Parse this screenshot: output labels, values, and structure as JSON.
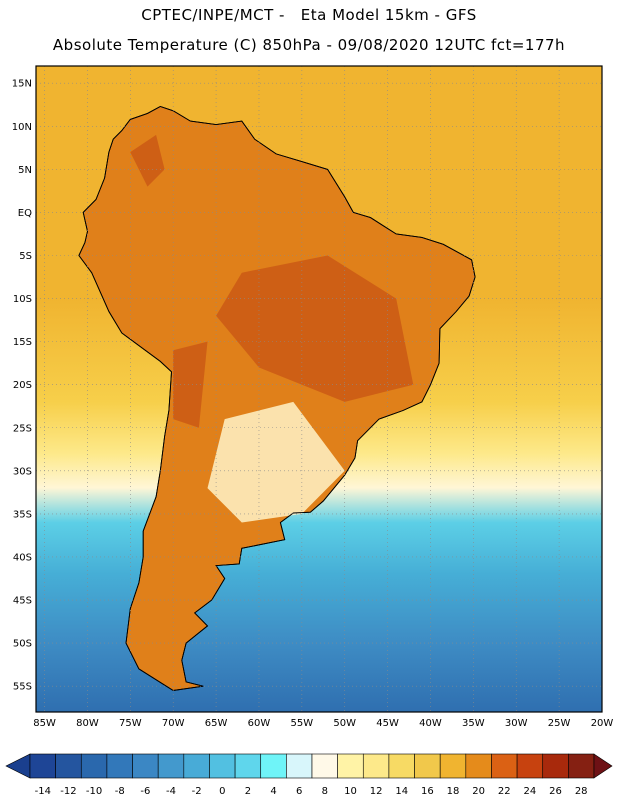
{
  "header": {
    "line1": "CPTEC/INPE/MCT -   Eta Model 15km - GFS",
    "line2": "Absolute Temperature (C) 850hPa - 09/08/2020 12UTC fct=177h"
  },
  "map": {
    "lon_range": [
      -86,
      -20
    ],
    "lat_range": [
      -58,
      17
    ],
    "lat_ticks": [
      {
        "lat": 15,
        "label": "15N"
      },
      {
        "lat": 10,
        "label": "10N"
      },
      {
        "lat": 5,
        "label": "5N"
      },
      {
        "lat": 0,
        "label": "EQ"
      },
      {
        "lat": -5,
        "label": "5S"
      },
      {
        "lat": -10,
        "label": "10S"
      },
      {
        "lat": -15,
        "label": "15S"
      },
      {
        "lat": -20,
        "label": "20S"
      },
      {
        "lat": -25,
        "label": "25S"
      },
      {
        "lat": -30,
        "label": "30S"
      },
      {
        "lat": -35,
        "label": "35S"
      },
      {
        "lat": -40,
        "label": "40S"
      },
      {
        "lat": -45,
        "label": "45S"
      },
      {
        "lat": -50,
        "label": "50S"
      },
      {
        "lat": -55,
        "label": "55S"
      }
    ],
    "lon_ticks": [
      {
        "lon": -85,
        "label": "85W"
      },
      {
        "lon": -80,
        "label": "80W"
      },
      {
        "lon": -75,
        "label": "75W"
      },
      {
        "lon": -70,
        "label": "70W"
      },
      {
        "lon": -65,
        "label": "65W"
      },
      {
        "lon": -60,
        "label": "60W"
      },
      {
        "lon": -55,
        "label": "55W"
      },
      {
        "lon": -50,
        "label": "50W"
      },
      {
        "lon": -45,
        "label": "45W"
      },
      {
        "lon": -40,
        "label": "40W"
      },
      {
        "lon": -35,
        "label": "35W"
      },
      {
        "lon": -30,
        "label": "30W"
      },
      {
        "lon": -25,
        "label": "25W"
      },
      {
        "lon": -20,
        "label": "20W"
      }
    ],
    "bands": [
      {
        "lat": -58,
        "color": "#2f6fb0"
      },
      {
        "lat": -50,
        "color": "#3e8cc4"
      },
      {
        "lat": -42,
        "color": "#46aed6"
      },
      {
        "lat": -36,
        "color": "#5ccfe6"
      },
      {
        "lat": -32,
        "color": "#fff6d6"
      },
      {
        "lat": -28,
        "color": "#fde98a"
      },
      {
        "lat": -22,
        "color": "#f7cf4a"
      },
      {
        "lat": -10,
        "color": "#f0b430"
      },
      {
        "lat": 17,
        "color": "#f0b430"
      }
    ],
    "land_color": "#e0801a",
    "hot_color": "#c85414",
    "coast": [
      [
        -77.0,
        8.5
      ],
      [
        -76.0,
        9.5
      ],
      [
        -75.0,
        10.8
      ],
      [
        -73.0,
        11.5
      ],
      [
        -71.5,
        12.3
      ],
      [
        -70.0,
        11.8
      ],
      [
        -68.0,
        10.6
      ],
      [
        -65.0,
        10.2
      ],
      [
        -62.0,
        10.6
      ],
      [
        -60.5,
        8.5
      ],
      [
        -58.0,
        6.8
      ],
      [
        -55.0,
        5.9
      ],
      [
        -52.0,
        5.0
      ],
      [
        -50.0,
        1.8
      ],
      [
        -49.0,
        0.0
      ],
      [
        -47.0,
        -0.6
      ],
      [
        -44.0,
        -2.5
      ],
      [
        -41.0,
        -2.9
      ],
      [
        -38.5,
        -3.7
      ],
      [
        -35.2,
        -5.5
      ],
      [
        -34.8,
        -7.5
      ],
      [
        -35.5,
        -9.7
      ],
      [
        -37.0,
        -11.5
      ],
      [
        -38.9,
        -13.5
      ],
      [
        -39.0,
        -17.5
      ],
      [
        -40.0,
        -20.0
      ],
      [
        -41.0,
        -22.0
      ],
      [
        -43.2,
        -23.0
      ],
      [
        -46.0,
        -24.0
      ],
      [
        -48.5,
        -26.5
      ],
      [
        -48.8,
        -28.5
      ],
      [
        -50.0,
        -30.5
      ],
      [
        -52.5,
        -33.5
      ],
      [
        -54.0,
        -34.8
      ],
      [
        -56.0,
        -34.9
      ],
      [
        -57.5,
        -36.0
      ],
      [
        -57.0,
        -38.0
      ],
      [
        -62.0,
        -39.0
      ],
      [
        -62.3,
        -40.8
      ],
      [
        -65.0,
        -41.0
      ],
      [
        -64.0,
        -42.5
      ],
      [
        -65.5,
        -45.0
      ],
      [
        -67.5,
        -46.5
      ],
      [
        -66.0,
        -48.0
      ],
      [
        -68.5,
        -50.0
      ],
      [
        -69.0,
        -52.0
      ],
      [
        -68.5,
        -54.5
      ],
      [
        -66.5,
        -55.0
      ],
      [
        -70.0,
        -55.5
      ],
      [
        -74.0,
        -53.0
      ],
      [
        -75.5,
        -50.0
      ],
      [
        -75.0,
        -46.0
      ],
      [
        -74.0,
        -43.0
      ],
      [
        -73.5,
        -40.0
      ],
      [
        -73.5,
        -37.0
      ],
      [
        -72.0,
        -33.0
      ],
      [
        -71.5,
        -30.0
      ],
      [
        -71.0,
        -26.0
      ],
      [
        -70.5,
        -23.0
      ],
      [
        -70.2,
        -18.5
      ],
      [
        -71.5,
        -17.3
      ],
      [
        -76.0,
        -14.0
      ],
      [
        -77.5,
        -11.5
      ],
      [
        -79.5,
        -7.0
      ],
      [
        -81.0,
        -5.0
      ],
      [
        -80.3,
        -3.5
      ],
      [
        -80.0,
        -2.2
      ],
      [
        -80.5,
        0.0
      ],
      [
        -79.0,
        1.5
      ],
      [
        -78.0,
        4.0
      ],
      [
        -77.5,
        7.0
      ]
    ],
    "hot_regions": [
      [
        [
          -75,
          7
        ],
        [
          -72,
          9
        ],
        [
          -71,
          5
        ],
        [
          -73,
          3
        ]
      ],
      [
        [
          -62,
          -7
        ],
        [
          -52,
          -5
        ],
        [
          -44,
          -10
        ],
        [
          -42,
          -20
        ],
        [
          -50,
          -22
        ],
        [
          -60,
          -18
        ],
        [
          -65,
          -12
        ]
      ],
      [
        [
          -70,
          -16
        ],
        [
          -66,
          -15
        ],
        [
          -67,
          -25
        ],
        [
          -70,
          -24
        ]
      ]
    ],
    "cool_regions": [
      [
        [
          -64,
          -24
        ],
        [
          -56,
          -22
        ],
        [
          -50,
          -30
        ],
        [
          -55,
          -35
        ],
        [
          -62,
          -36
        ],
        [
          -66,
          -32
        ]
      ]
    ]
  },
  "colorbar": {
    "labels": [
      "-14",
      "-12",
      "-10",
      "-8",
      "-6",
      "-4",
      "-2",
      "0",
      "2",
      "4",
      "6",
      "8",
      "10",
      "12",
      "14",
      "16",
      "18",
      "20",
      "22",
      "24",
      "26",
      "28"
    ],
    "colors": [
      "#1e4596",
      "#24559f",
      "#2a68ad",
      "#3278ba",
      "#3b87c4",
      "#4399cd",
      "#48abd7",
      "#52c0e1",
      "#5fd6ec",
      "#6ff4f8",
      "#d8f6fb",
      "#fff9e8",
      "#fff3a6",
      "#fde98a",
      "#f7da64",
      "#f1c84b",
      "#f0b430",
      "#e58b1b",
      "#db6114",
      "#c7420f",
      "#a8290c",
      "#852012"
    ],
    "low_color": "#1a3f8e",
    "high_color": "#6e1115"
  }
}
